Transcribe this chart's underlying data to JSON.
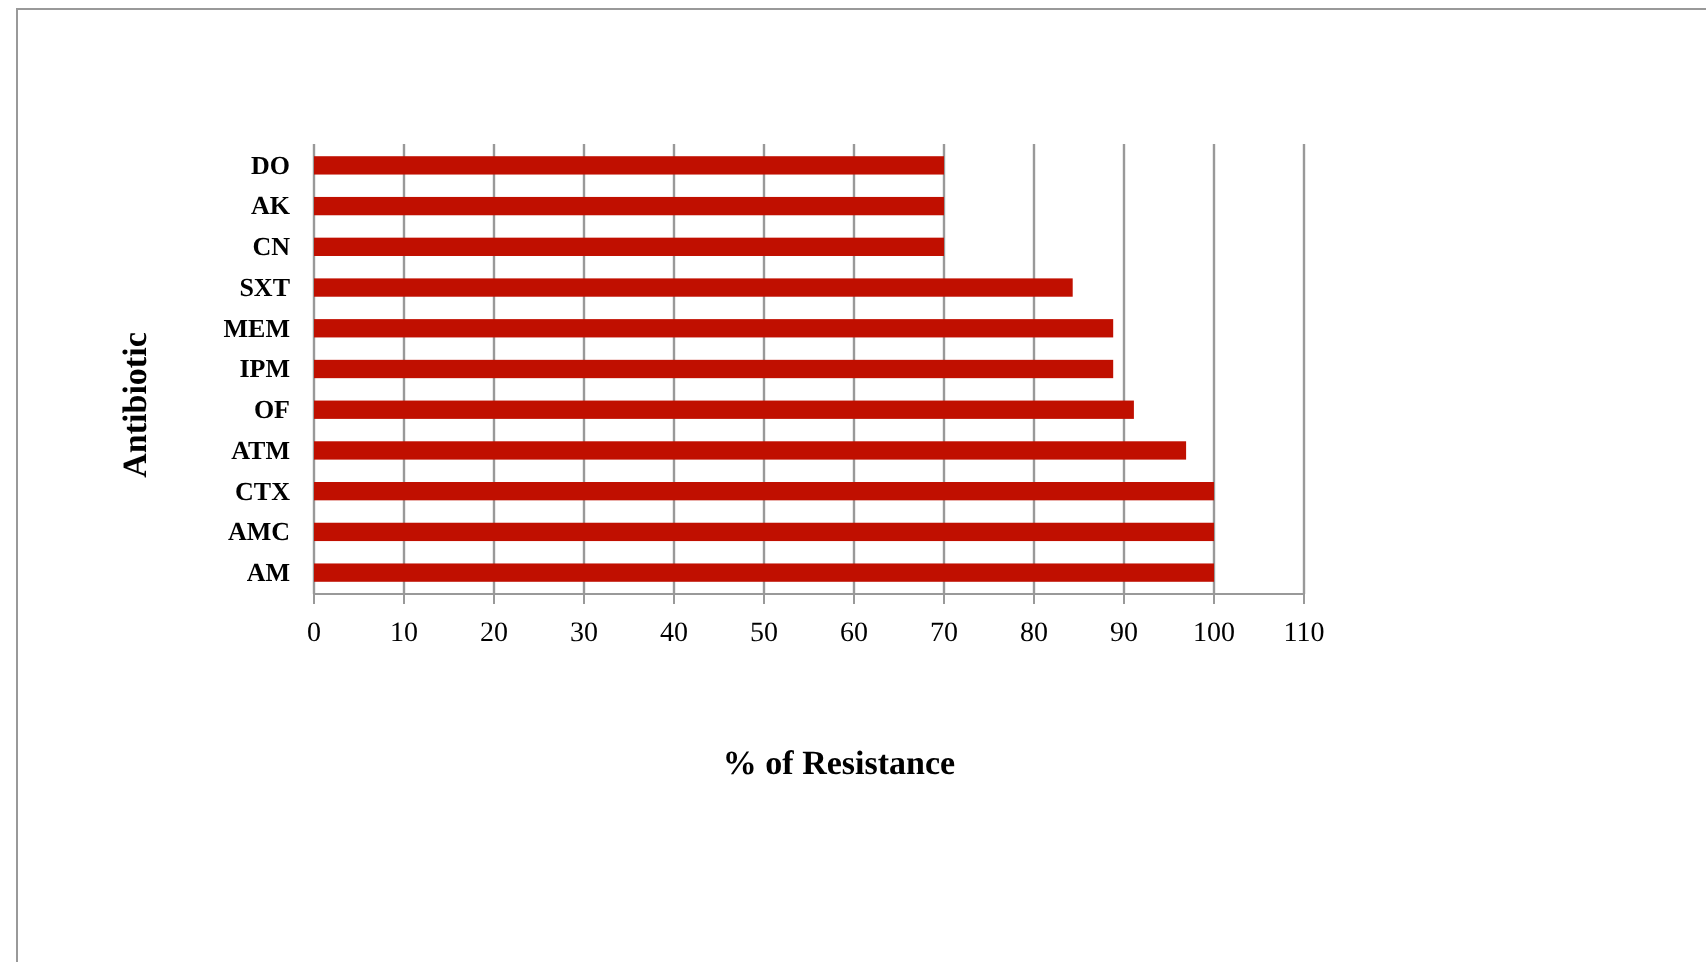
{
  "chart_data": {
    "type": "bar",
    "orientation": "horizontal",
    "xlabel": "% of Resistance",
    "ylabel": "Antibiotic",
    "categories": [
      "DO",
      "AK",
      "CN",
      "SXT",
      "MEM",
      "IPM",
      "OF",
      "ATM",
      "CTX",
      "AMC",
      "AM"
    ],
    "values": [
      70,
      70,
      70,
      84.3,
      88.8,
      88.8,
      91.1,
      96.9,
      100,
      100,
      100
    ],
    "color": "#c00f00",
    "xlim": [
      0,
      110
    ],
    "xticks": [
      0,
      10,
      20,
      30,
      40,
      50,
      60,
      70,
      80,
      90,
      100,
      110
    ],
    "grid": "x"
  }
}
